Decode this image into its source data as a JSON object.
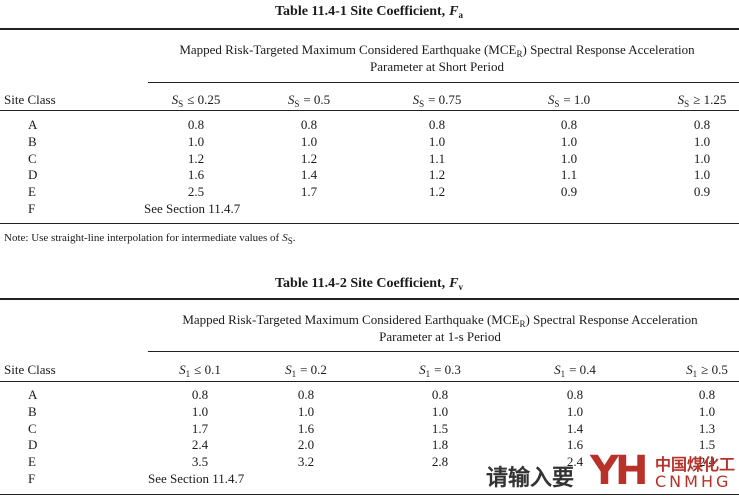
{
  "tables": [
    {
      "title": {
        "text": "Table 11.4-1  Site Coefficient,",
        "symbol": "F",
        "subscript": "a"
      },
      "group_header": {
        "line1": "Mapped Risk-Targeted Maximum Considered Earthquake (MCE",
        "line1_subscript": "R",
        "line1_end": ")  Spectral Response Acceleration",
        "line2": "Parameter at Short Period"
      },
      "row_header": "Site Class",
      "columns": [
        {
          "symbol": "S",
          "subscript": "S",
          "condition": "≤ 0.25"
        },
        {
          "symbol": "S",
          "subscript": "S",
          "condition": "= 0.5"
        },
        {
          "symbol": "S",
          "subscript": "S",
          "condition": "= 0.75"
        },
        {
          "symbol": "S",
          "subscript": "S",
          "condition": "= 1.0"
        },
        {
          "symbol": "S",
          "subscript": "S",
          "condition": "≥ 1.25"
        }
      ],
      "rows": [
        [
          "A",
          "0.8",
          "0.8",
          "0.8",
          "0.8",
          "0.8"
        ],
        [
          "B",
          "1.0",
          "1.0",
          "1.0",
          "1.0",
          "1.0"
        ],
        [
          "C",
          "1.2",
          "1.2",
          "1.1",
          "1.0",
          "1.0"
        ],
        [
          "D",
          "1.6",
          "1.4",
          "1.2",
          "1.1",
          "1.0"
        ],
        [
          "E",
          "2.5",
          "1.7",
          "1.2",
          "0.9",
          "0.9"
        ],
        [
          "F",
          "See Section 11.4.7"
        ]
      ],
      "note": {
        "text": "Note: Use straight-line interpolation for intermediate values of",
        "symbol": "S",
        "subscript": "S",
        "end": "."
      }
    },
    {
      "title": {
        "text": "Table 11.4-2  Site Coefficient,",
        "symbol": "F",
        "subscript": "v"
      },
      "group_header": {
        "line1": "Mapped Risk-Targeted Maximum Considered Earthquake (MCE",
        "line1_subscript": "R",
        "line1_end": ") Spectral Response Acceleration",
        "line2": "Parameter at 1-s Period"
      },
      "row_header": "Site Class",
      "columns": [
        {
          "symbol": "S",
          "subscript": "1",
          "condition": "≤ 0.1"
        },
        {
          "symbol": "S",
          "subscript": "1",
          "condition": "= 0.2"
        },
        {
          "symbol": "S",
          "subscript": "1",
          "condition": "= 0.3"
        },
        {
          "symbol": "S",
          "subscript": "1",
          "condition": "= 0.4"
        },
        {
          "symbol": "S",
          "subscript": "1",
          "condition": "≥ 0.5"
        }
      ],
      "rows": [
        [
          "A",
          "0.8",
          "0.8",
          "0.8",
          "0.8",
          "0.8"
        ],
        [
          "B",
          "1.0",
          "1.0",
          "1.0",
          "1.0",
          "1.0"
        ],
        [
          "C",
          "1.7",
          "1.6",
          "1.5",
          "1.4",
          "1.3"
        ],
        [
          "D",
          "2.4",
          "2.0",
          "1.8",
          "1.6",
          "1.5"
        ],
        [
          "E",
          "3.5",
          "3.2",
          "2.8",
          "2.4",
          "2.4"
        ],
        [
          "F",
          "See Section 11.4.7"
        ]
      ]
    }
  ],
  "watermark": {
    "prompt": "请输入要",
    "brand_cn": "中国煤化工",
    "brand_en": "CNMHG",
    "logo": "YH"
  }
}
